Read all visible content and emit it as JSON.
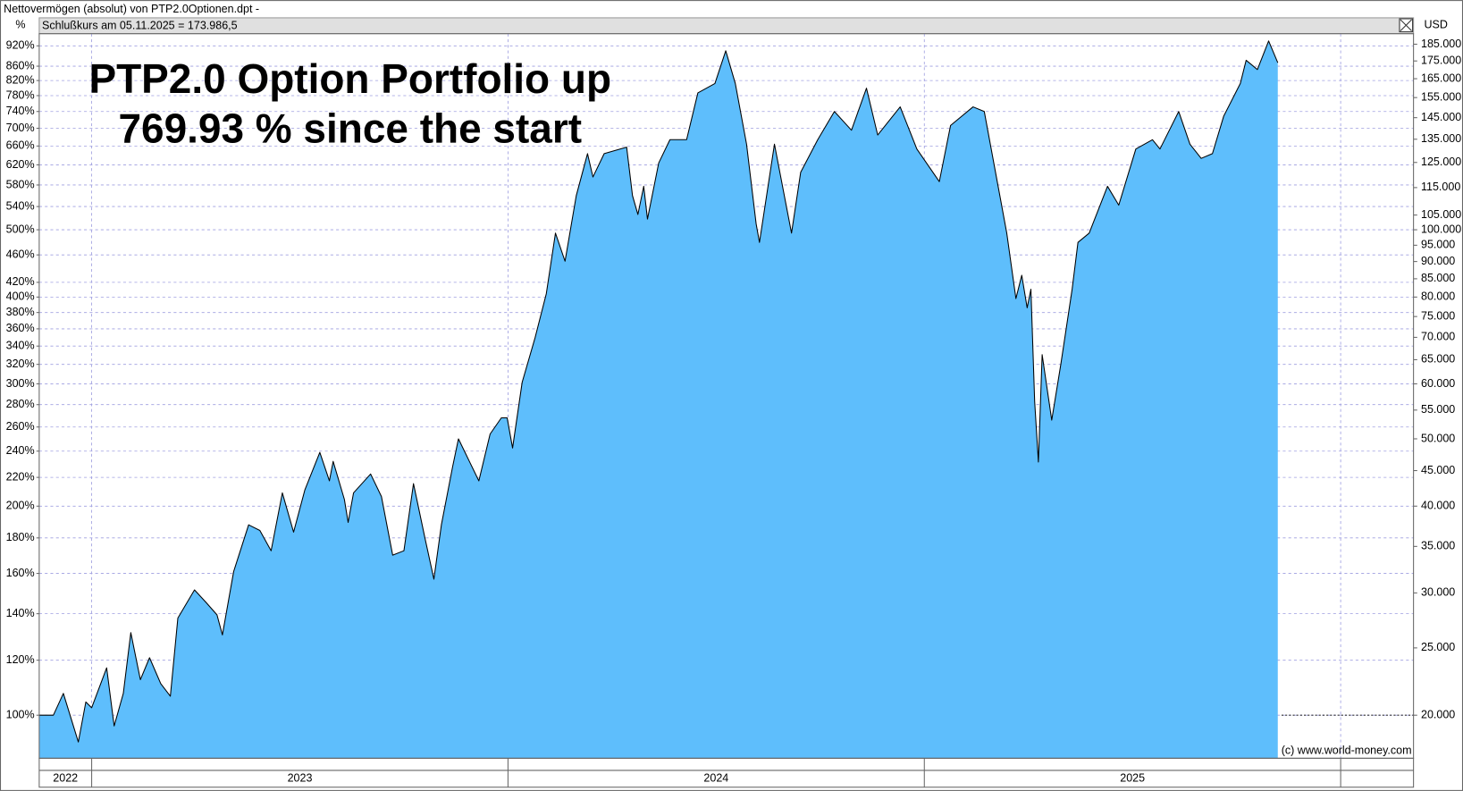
{
  "chart_data": {
    "type": "area",
    "title": "Nettovermögen (absolut) von PTP2.0Optionen.dpt -",
    "subtitle": "Schlußkurs am 05.11.2025 = 173.986,5",
    "annotation": [
      "PTP2.0 Option Portfolio up",
      "769.93 % since the start"
    ],
    "y_label": "%",
    "y2_label": "USD",
    "credit": "(c) www.world-money.com",
    "log_scale": true,
    "grid": true,
    "reference_line": 20000,
    "xlim": [
      2022.874,
      2026.175
    ],
    "x_bands": [
      {
        "label": "2022",
        "start": 2022.874,
        "end": 2023
      },
      {
        "label": "2023",
        "start": 2023,
        "end": 2024
      },
      {
        "label": "2024",
        "start": 2024,
        "end": 2025
      },
      {
        "label": "2025",
        "start": 2025,
        "end": 2026
      }
    ],
    "x": [
      2022.874,
      2022.908,
      2022.932,
      2022.968,
      2022.986,
      2023.0,
      2023.036,
      2023.054,
      2023.076,
      2023.094,
      2023.117,
      2023.139,
      2023.166,
      2023.189,
      2023.207,
      2023.247,
      2023.274,
      2023.301,
      2023.314,
      2023.341,
      2023.377,
      2023.404,
      2023.431,
      2023.458,
      2023.485,
      2023.512,
      2023.548,
      2023.571,
      2023.58,
      2023.607,
      2023.616,
      2023.629,
      2023.67,
      2023.696,
      2023.723,
      2023.75,
      2023.773,
      2023.8,
      2023.822,
      2023.84,
      2023.867,
      2023.881,
      2023.908,
      2023.93,
      2023.957,
      2023.984,
      2023.998,
      2024.011,
      2024.034,
      2024.065,
      2024.092,
      2024.114,
      2024.137,
      2024.164,
      2024.191,
      2024.204,
      2024.231,
      2024.285,
      2024.299,
      2024.312,
      2024.326,
      2024.335,
      2024.362,
      2024.389,
      2024.429,
      2024.456,
      2024.497,
      2024.523,
      2024.546,
      2024.573,
      2024.596,
      2024.604,
      2024.64,
      2024.681,
      2024.703,
      2024.744,
      2024.784,
      2024.825,
      2024.861,
      2024.888,
      2024.942,
      2024.982,
      2025.036,
      2025.063,
      2025.117,
      2025.144,
      2025.171,
      2025.198,
      2025.22,
      2025.234,
      2025.247,
      2025.256,
      2025.265,
      2025.274,
      2025.283,
      2025.306,
      2025.328,
      2025.355,
      2025.369,
      2025.396,
      2025.44,
      2025.467,
      2025.508,
      2025.548,
      2025.566,
      2025.611,
      2025.638,
      2025.665,
      2025.692,
      2025.719,
      2025.759,
      2025.773,
      2025.8,
      2025.827,
      2025.849
    ],
    "ylim": [
      86.7,
      957.8
    ],
    "yticks": [
      {
        "value": 100,
        "label": "100%"
      },
      {
        "value": 120,
        "label": "120%"
      },
      {
        "value": 140,
        "label": "140%"
      },
      {
        "value": 160,
        "label": "160%"
      },
      {
        "value": 180,
        "label": "180%"
      },
      {
        "value": 200,
        "label": "200%"
      },
      {
        "value": 220,
        "label": "220%"
      },
      {
        "value": 240,
        "label": "240%"
      },
      {
        "value": 260,
        "label": "260%"
      },
      {
        "value": 280,
        "label": "280%"
      },
      {
        "value": 300,
        "label": "300%"
      },
      {
        "value": 320,
        "label": "320%"
      },
      {
        "value": 340,
        "label": "340%"
      },
      {
        "value": 360,
        "label": "360%"
      },
      {
        "value": 380,
        "label": "380%"
      },
      {
        "value": 400,
        "label": "400%"
      },
      {
        "value": 420,
        "label": "420%"
      },
      {
        "value": 460,
        "label": "460%"
      },
      {
        "value": 500,
        "label": "500%"
      },
      {
        "value": 540,
        "label": "540%"
      },
      {
        "value": 580,
        "label": "580%"
      },
      {
        "value": 620,
        "label": "620%"
      },
      {
        "value": 660,
        "label": "660%"
      },
      {
        "value": 700,
        "label": "700%"
      },
      {
        "value": 740,
        "label": "740%"
      },
      {
        "value": 780,
        "label": "780%"
      },
      {
        "value": 820,
        "label": "820%"
      },
      {
        "value": 860,
        "label": "860%"
      },
      {
        "value": 920,
        "label": "920%"
      }
    ],
    "y2lim": [
      17340,
      191560
    ],
    "y2ticks": [
      {
        "value": 20000,
        "label": "20.000"
      },
      {
        "value": 25000,
        "label": "25.000"
      },
      {
        "value": 30000,
        "label": "30.000"
      },
      {
        "value": 35000,
        "label": "35.000"
      },
      {
        "value": 40000,
        "label": "40.000"
      },
      {
        "value": 45000,
        "label": "45.000"
      },
      {
        "value": 50000,
        "label": "50.000"
      },
      {
        "value": 55000,
        "label": "55.000"
      },
      {
        "value": 60000,
        "label": "60.000"
      },
      {
        "value": 65000,
        "label": "65.000"
      },
      {
        "value": 70000,
        "label": "70.000"
      },
      {
        "value": 75000,
        "label": "75.000"
      },
      {
        "value": 80000,
        "label": "80.000"
      },
      {
        "value": 85000,
        "label": "85.000"
      },
      {
        "value": 90000,
        "label": "90.000"
      },
      {
        "value": 95000,
        "label": "95.000"
      },
      {
        "value": 100000,
        "label": "100.000"
      },
      {
        "value": 105000,
        "label": "105.000"
      },
      {
        "value": 115000,
        "label": "115.000"
      },
      {
        "value": 125000,
        "label": "125.000"
      },
      {
        "value": 135000,
        "label": "135.000"
      },
      {
        "value": 145000,
        "label": "145.000"
      },
      {
        "value": 155000,
        "label": "155.000"
      },
      {
        "value": 165000,
        "label": "165.000"
      },
      {
        "value": 175000,
        "label": "175.000"
      },
      {
        "value": 185000,
        "label": "185.000"
      }
    ],
    "series": [
      {
        "axis": "y2",
        "color": "#5ebefc",
        "line_color": "#000000",
        "values": [
          20000,
          20000,
          21500,
          18300,
          20900,
          20500,
          23400,
          19300,
          21500,
          26300,
          22500,
          24200,
          22200,
          21300,
          27600,
          30300,
          29100,
          27900,
          26100,
          32200,
          37600,
          36900,
          34500,
          41800,
          36700,
          42200,
          47800,
          43500,
          46400,
          40900,
          37900,
          41800,
          44500,
          41300,
          34000,
          34500,
          43100,
          36100,
          31400,
          37600,
          45600,
          50000,
          46300,
          43500,
          50800,
          53600,
          53600,
          48500,
          60300,
          69900,
          80900,
          98900,
          90100,
          112000,
          128700,
          119100,
          128700,
          131500,
          112000,
          105200,
          115500,
          103600,
          124800,
          134800,
          134800,
          157400,
          162400,
          181000,
          162400,
          132800,
          102000,
          95900,
          132800,
          98900,
          121000,
          134800,
          148000,
          139100,
          159900,
          136900,
          150300,
          130700,
          117300,
          141300,
          150300,
          148000,
          121000,
          98900,
          79600,
          86000,
          77200,
          82100,
          56600,
          46300,
          66100,
          53200,
          64100,
          82100,
          95900,
          98900,
          115500,
          108500,
          130700,
          134800,
          130700,
          148000,
          132800,
          126700,
          128700,
          145700,
          162400,
          175400,
          170100,
          187000,
          173986.5
        ]
      }
    ]
  }
}
